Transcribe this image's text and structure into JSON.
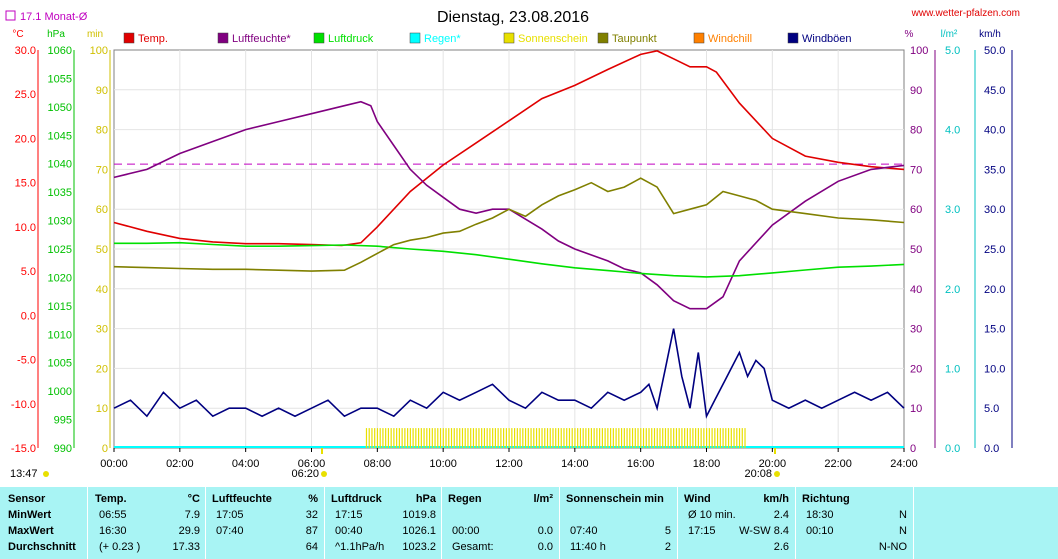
{
  "chart_data": {
    "type": "line",
    "title": "Dienstag, 23.08.2016",
    "source": "www.wetter-pfalzen.com",
    "ref_label": "17.1 Monat-Ø",
    "ref_value_celsius": 17.1,
    "x_ticks": [
      "00:00",
      "02:00",
      "04:00",
      "06:00",
      "08:00",
      "10:00",
      "12:00",
      "14:00",
      "16:00",
      "18:00",
      "20:00",
      "22:00",
      "24:00"
    ],
    "sunrise": "06:20",
    "sunset": "20:08",
    "time_label_left": "13:47",
    "axes": [
      {
        "unit": "°C",
        "ticks": [
          "30.0",
          "25.0",
          "20.0",
          "15.0",
          "10.0",
          "5.0",
          "0.0",
          "-5.0",
          "-10.0",
          "-15.0"
        ],
        "range": [
          -15,
          30
        ],
        "color": "#ff0000"
      },
      {
        "unit": "hPa",
        "ticks": [
          "1060",
          "1055",
          "1050",
          "1045",
          "1040",
          "1035",
          "1030",
          "1025",
          "1020",
          "1015",
          "1010",
          "1005",
          "1000",
          "995",
          "990"
        ],
        "range": [
          990,
          1060
        ],
        "color": "#00c000"
      },
      {
        "unit": "min",
        "ticks": [
          "100",
          "90",
          "80",
          "70",
          "60",
          "50",
          "40",
          "30",
          "20",
          "10",
          "0"
        ],
        "range": [
          0,
          100
        ],
        "color": "#d0c000"
      },
      {
        "unit": "%",
        "ticks": [
          "100",
          "90",
          "80",
          "70",
          "60",
          "50",
          "40",
          "30",
          "20",
          "10",
          "0"
        ],
        "range": [
          0,
          100
        ],
        "color": "#800080"
      },
      {
        "unit": "l/m²",
        "ticks": [
          "5.0",
          "4.0",
          "3.0",
          "2.0",
          "1.0",
          "0.0"
        ],
        "range": [
          0,
          5
        ],
        "color": "#00c0c0"
      },
      {
        "unit": "km/h",
        "ticks": [
          "50.0",
          "45.0",
          "40.0",
          "35.0",
          "30.0",
          "25.0",
          "20.0",
          "15.0",
          "10.0",
          "5.0",
          "0.0"
        ],
        "range": [
          0,
          50
        ],
        "color": "#000080"
      }
    ],
    "legend": [
      {
        "name": "Temp.",
        "color": "#e00000"
      },
      {
        "name": "Luftfeuchte*",
        "color": "#800080"
      },
      {
        "name": "Luftdruck",
        "color": "#00e000"
      },
      {
        "name": "Regen*",
        "color": "#00ffff"
      },
      {
        "name": "Sonnenschein",
        "color": "#e8e000"
      },
      {
        "name": "Taupunkt",
        "color": "#808000"
      },
      {
        "name": "Windchill",
        "color": "#ff8000"
      },
      {
        "name": "Windböen",
        "color": "#000080"
      }
    ],
    "series": [
      {
        "name": "Temp.",
        "axis": 0,
        "color": "#e00000",
        "x": [
          0,
          1,
          2,
          3,
          4,
          5,
          6,
          6.92,
          7.5,
          8,
          9,
          10,
          11,
          12,
          13,
          14,
          15,
          16,
          16.5,
          17,
          17.5,
          18,
          18.3,
          19,
          20,
          21,
          22,
          23,
          24
        ],
        "y": [
          10.5,
          9.5,
          8.7,
          8.3,
          8.1,
          8.1,
          8.0,
          7.9,
          8.2,
          10.0,
          14.0,
          17.0,
          19.5,
          22.0,
          24.5,
          26.0,
          27.8,
          29.5,
          29.9,
          29.0,
          28.1,
          28.1,
          27.5,
          24.0,
          20.0,
          18.0,
          17.3,
          16.8,
          16.5
        ]
      },
      {
        "name": "Luftfeuchte*",
        "axis": 3,
        "color": "#800080",
        "x": [
          0,
          1,
          2,
          3,
          4,
          5,
          6,
          7,
          7.5,
          7.8,
          8,
          8.5,
          9,
          9.5,
          10,
          10.5,
          11,
          11.5,
          12,
          13,
          13.5,
          14,
          15,
          15.5,
          16,
          16.5,
          17,
          17.5,
          18,
          18.5,
          19,
          20,
          21,
          22,
          23,
          24
        ],
        "y": [
          68,
          70,
          74,
          77,
          80,
          82,
          84,
          86,
          87,
          86,
          82,
          76,
          70,
          66,
          63,
          60,
          59,
          60,
          60,
          55,
          52,
          50,
          47,
          45,
          44,
          41,
          37,
          35,
          35,
          38,
          47,
          56,
          62,
          67,
          70,
          71
        ]
      },
      {
        "name": "Luftdruck",
        "axis": 1,
        "color": "#00e000",
        "x": [
          0,
          1,
          2,
          3,
          4,
          5,
          6,
          7,
          8,
          9,
          10,
          11,
          12,
          13,
          14,
          15,
          16,
          17,
          18,
          19,
          20,
          21,
          22,
          23,
          24
        ],
        "y": [
          1026.0,
          1026.0,
          1026.1,
          1025.8,
          1025.5,
          1025.5,
          1025.6,
          1025.7,
          1025.5,
          1025.0,
          1024.6,
          1024.0,
          1023.2,
          1022.4,
          1021.7,
          1021.2,
          1020.7,
          1020.3,
          1020.1,
          1020.3,
          1020.8,
          1021.3,
          1021.8,
          1022.0,
          1022.3
        ]
      },
      {
        "name": "Taupunkt",
        "axis": 0,
        "color": "#808000",
        "x": [
          0,
          1,
          2,
          3,
          4,
          5,
          6,
          7,
          7.5,
          8,
          8.5,
          9,
          9.5,
          10,
          10.5,
          11,
          11.5,
          12,
          12.5,
          13,
          13.5,
          14,
          14.5,
          15,
          15.5,
          16,
          16.5,
          17,
          17.5,
          18,
          18.5,
          19,
          19.5,
          20,
          21,
          22,
          23,
          24
        ],
        "y": [
          5.5,
          5.4,
          5.3,
          5.2,
          5.2,
          5.1,
          5.0,
          5.1,
          6.0,
          7.0,
          8.0,
          8.5,
          8.8,
          9.3,
          9.5,
          10.3,
          11.0,
          12.0,
          11.2,
          12.5,
          13.5,
          14.2,
          15.0,
          14.0,
          14.5,
          15.5,
          14.5,
          11.5,
          12.0,
          12.5,
          14.0,
          13.5,
          13.0,
          12.0,
          11.5,
          11.0,
          10.8,
          10.5
        ]
      },
      {
        "name": "Windböen",
        "axis": 5,
        "color": "#000080",
        "x": [
          0,
          0.5,
          1,
          1.5,
          2,
          2.5,
          3,
          3.5,
          4,
          4.5,
          5,
          5.5,
          6,
          6.5,
          7,
          7.5,
          8,
          8.5,
          9,
          9.5,
          10,
          10.5,
          11,
          11.5,
          12,
          12.5,
          13,
          13.5,
          14,
          14.5,
          15,
          15.5,
          16,
          16.25,
          16.5,
          16.75,
          17,
          17.25,
          17.5,
          17.75,
          18,
          18.25,
          18.5,
          18.75,
          19,
          19.25,
          19.5,
          19.75,
          20,
          20.5,
          21,
          21.5,
          22,
          22.5,
          23,
          23.5,
          24
        ],
        "y": [
          5,
          6,
          4,
          7,
          5,
          6,
          4,
          5,
          5,
          4,
          5,
          4,
          5,
          6,
          4,
          5,
          5,
          4,
          6,
          5,
          7,
          6,
          7,
          8,
          6,
          5,
          7,
          6,
          6,
          5,
          7,
          6,
          7,
          8,
          5,
          10,
          15,
          9,
          5,
          12,
          4,
          6,
          8,
          10,
          12,
          9,
          11,
          10,
          6,
          5,
          6,
          5,
          6,
          7,
          6,
          7,
          5
        ]
      }
    ],
    "sunshine": {
      "axis": 2,
      "color": "#e8e000",
      "start": 7.67,
      "end": 19.25,
      "value": 2.5
    },
    "rain": {
      "axis": 4,
      "color": "#00ffff",
      "value": 0.0
    },
    "reference_line": {
      "axis": 0,
      "value": 17.1,
      "color": "#c000c0"
    }
  },
  "table": {
    "row_labels": [
      "Sensor",
      "MinWert",
      "MaxWert",
      "Durchschnitt"
    ],
    "temp": {
      "h1": "Temp.",
      "h2": "°C",
      "rows": [
        [
          "06:55",
          "7.9"
        ],
        [
          "16:30",
          "29.9"
        ],
        [
          "(+ 0.23 )",
          "17.33"
        ]
      ]
    },
    "hum": {
      "h1": "Luftfeuchte",
      "h2": "%",
      "rows": [
        [
          "17:05",
          "32"
        ],
        [
          "07:40",
          "87"
        ],
        [
          "",
          "64"
        ]
      ]
    },
    "press": {
      "h1": "Luftdruck",
      "h2": "hPa",
      "rows": [
        [
          "17:15",
          "1019.8"
        ],
        [
          "00:40",
          "1026.1"
        ],
        [
          "^1.1hPa/h",
          "1023.2"
        ]
      ]
    },
    "rain": {
      "h1": "Regen",
      "h2": "l/m²",
      "rows": [
        [
          "",
          ""
        ],
        [
          "00:00",
          "0.0"
        ],
        [
          "Gesamt:",
          "0.0"
        ]
      ]
    },
    "sun": {
      "h1": "Sonnenschein min",
      "h2": "",
      "rows": [
        [
          "",
          ""
        ],
        [
          "07:40",
          "5"
        ],
        [
          "11:40 h",
          "2"
        ]
      ]
    },
    "wind": {
      "h1": "Wind",
      "h2": "km/h",
      "rows": [
        [
          "Ø 10 min.",
          "2.4"
        ],
        [
          "17:15",
          "W-SW 8.4"
        ],
        [
          "",
          "2.6"
        ]
      ]
    },
    "dir": {
      "h1": "Richtung",
      "h2": "",
      "rows": [
        [
          "18:30",
          "N"
        ],
        [
          "00:10",
          "N"
        ],
        [
          "",
          "N-NO"
        ]
      ]
    }
  }
}
